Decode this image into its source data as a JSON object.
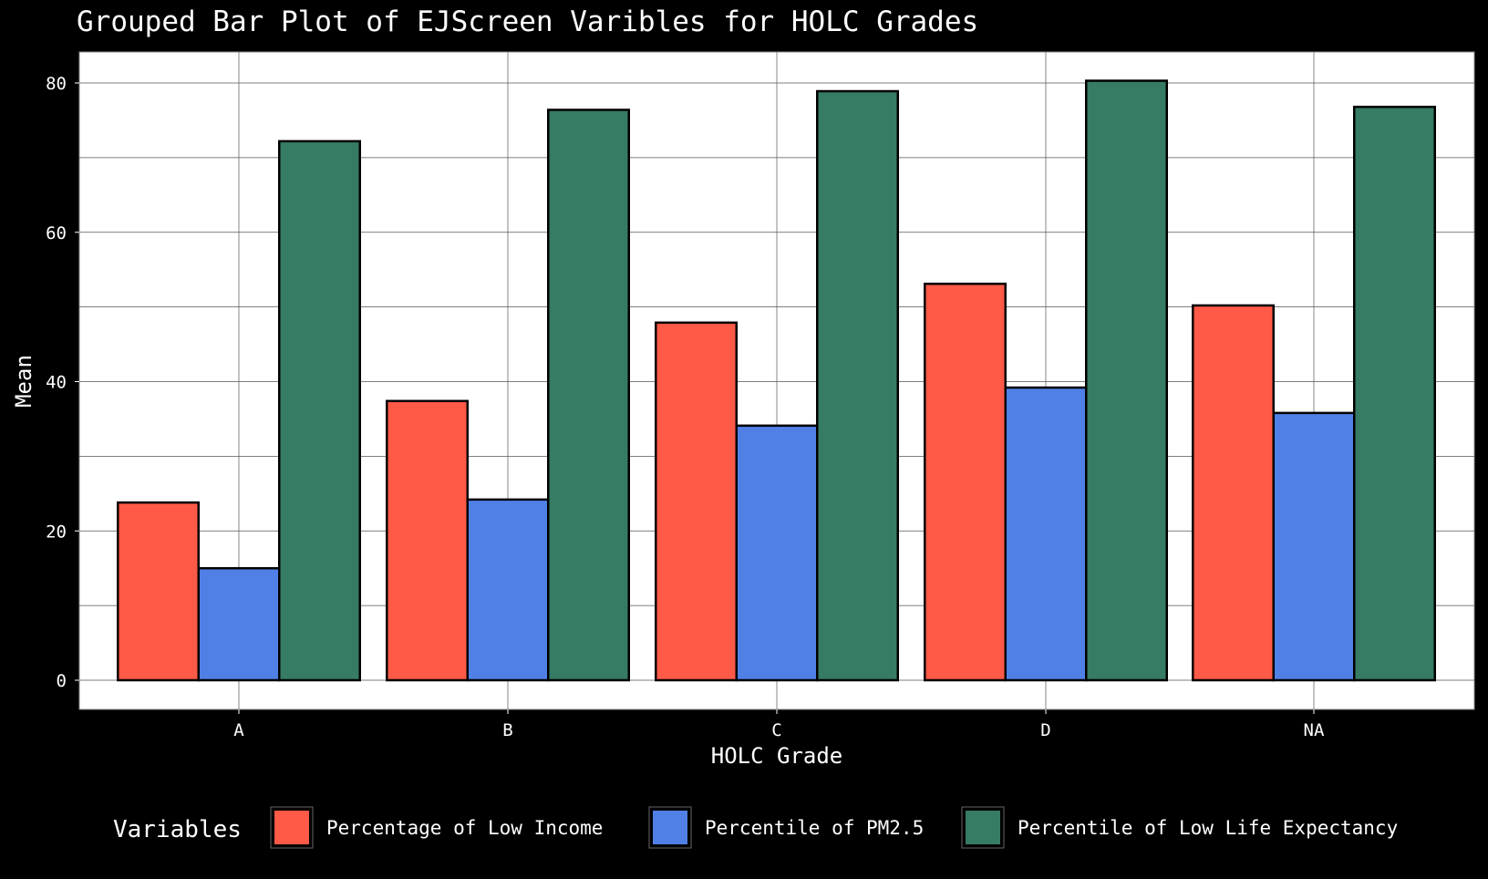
{
  "chart_data": {
    "type": "bar",
    "title": "Grouped Bar Plot of EJScreen Varibles for HOLC Grades",
    "xlabel": "HOLC Grade",
    "ylabel": "Mean",
    "categories": [
      "A",
      "B",
      "C",
      "D",
      "NA"
    ],
    "ylim": [
      0,
      80
    ],
    "yticks": [
      "0",
      "20",
      "40",
      "60",
      "80"
    ],
    "grid": true,
    "legend_title": "Variables",
    "legend_position": "bottom",
    "series": [
      {
        "name": "Percentage of Low Income",
        "color": "#FF5A47",
        "values": [
          23.8,
          37.4,
          47.9,
          53.1,
          50.2
        ]
      },
      {
        "name": "Percentile of PM2.5",
        "color": "#5080E6",
        "values": [
          15.0,
          24.2,
          34.1,
          39.2,
          35.8
        ]
      },
      {
        "name": "Percentile of Low Life Expectancy",
        "color": "#367B63",
        "values": [
          72.2,
          76.4,
          78.9,
          80.3,
          76.8
        ]
      }
    ]
  }
}
